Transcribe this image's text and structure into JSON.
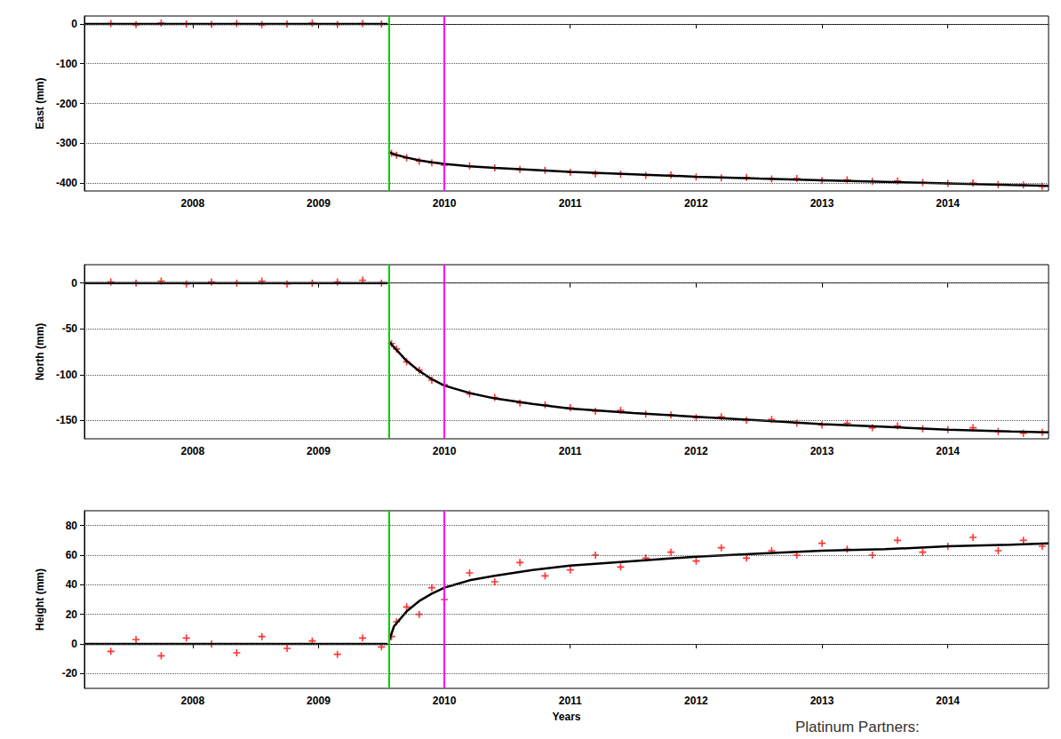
{
  "chart_data": [
    {
      "type": "line",
      "ylabel": "East (mm)",
      "grid": true,
      "xlim": [
        2007.14,
        2014.8
      ],
      "xticks": [
        2008,
        2009,
        2010,
        2011,
        2012,
        2013,
        2014
      ],
      "ylim": [
        -420,
        20
      ],
      "yticks": [
        -400,
        -300,
        -200,
        -100,
        0
      ],
      "vlines": [
        {
          "x": 2009.56,
          "color": "#00cc00"
        },
        {
          "x": 2010.0,
          "color": "#ff00ff"
        }
      ],
      "series": [
        {
          "type": "scatter",
          "color": "#ff0000",
          "marker": "plus",
          "x": [
            2007.35,
            2007.55,
            2007.75,
            2007.95,
            2008.15,
            2008.35,
            2008.55,
            2008.75,
            2008.95,
            2009.15,
            2009.35,
            2009.5,
            2009.58,
            2009.62,
            2009.7,
            2009.8,
            2009.9,
            2010.0,
            2010.2,
            2010.4,
            2010.6,
            2010.8,
            2011.0,
            2011.2,
            2011.4,
            2011.6,
            2011.8,
            2012.0,
            2012.2,
            2012.4,
            2012.6,
            2012.8,
            2013.0,
            2013.2,
            2013.4,
            2013.6,
            2013.8,
            2014.0,
            2014.2,
            2014.4,
            2014.6,
            2014.75
          ],
          "values": [
            1,
            -2,
            2,
            0,
            -1,
            1,
            -2,
            0,
            2,
            -1,
            1,
            0,
            -325,
            -330,
            -337,
            -345,
            -349,
            -355,
            -357,
            -362,
            -366,
            -368,
            -373,
            -377,
            -378,
            -381,
            -380,
            -385,
            -387,
            -386,
            -390,
            -389,
            -394,
            -392,
            -396,
            -395,
            -399,
            -401,
            -400,
            -404,
            -405,
            -408
          ]
        },
        {
          "type": "line",
          "color": "#000000",
          "line_style": "solid",
          "x": [
            2007.14,
            2009.55,
            2009.555,
            2009.56,
            2009.6,
            2009.7,
            2009.8,
            2009.9,
            2010.0,
            2010.2,
            2010.4,
            2010.7,
            2011.0,
            2011.5,
            2012.0,
            2012.5,
            2013.0,
            2013.5,
            2014.0,
            2014.5,
            2014.8
          ],
          "values": [
            0,
            0,
            null,
            -322,
            -328,
            -336,
            -343,
            -348,
            -352,
            -358,
            -362,
            -367,
            -372,
            -378,
            -384,
            -389,
            -393,
            -397,
            -401,
            -405,
            -407
          ]
        }
      ]
    },
    {
      "type": "line",
      "ylabel": "North (mm)",
      "grid": true,
      "xlim": [
        2007.14,
        2014.8
      ],
      "xticks": [
        2008,
        2009,
        2010,
        2011,
        2012,
        2013,
        2014
      ],
      "ylim": [
        -170,
        20
      ],
      "yticks": [
        -150,
        -100,
        -50,
        0
      ],
      "vlines": [
        {
          "x": 2009.56,
          "color": "#00cc00"
        },
        {
          "x": 2010.0,
          "color": "#ff00ff"
        }
      ],
      "series": [
        {
          "type": "scatter",
          "color": "#ff0000",
          "marker": "plus",
          "x": [
            2007.35,
            2007.55,
            2007.75,
            2007.95,
            2008.15,
            2008.35,
            2008.55,
            2008.75,
            2008.95,
            2009.15,
            2009.35,
            2009.5,
            2009.58,
            2009.62,
            2009.7,
            2009.8,
            2009.9,
            2010.0,
            2010.2,
            2010.4,
            2010.6,
            2010.8,
            2011.0,
            2011.2,
            2011.4,
            2011.6,
            2011.8,
            2012.0,
            2012.2,
            2012.4,
            2012.6,
            2012.8,
            2013.0,
            2013.2,
            2013.4,
            2013.6,
            2013.8,
            2014.0,
            2014.2,
            2014.4,
            2014.6,
            2014.75
          ],
          "values": [
            1,
            0,
            2,
            -1,
            1,
            0,
            2,
            -1,
            0,
            1,
            3,
            0,
            -66,
            -72,
            -86,
            -95,
            -106,
            -111,
            -121,
            -125,
            -131,
            -133,
            -136,
            -140,
            -139,
            -143,
            -144,
            -147,
            -146,
            -150,
            -149,
            -153,
            -155,
            -153,
            -158,
            -156,
            -159,
            -160,
            -158,
            -162,
            -164,
            -163
          ]
        },
        {
          "type": "line",
          "color": "#000000",
          "line_style": "solid",
          "x": [
            2007.14,
            2009.55,
            2009.555,
            2009.56,
            2009.6,
            2009.7,
            2009.8,
            2009.9,
            2010.0,
            2010.2,
            2010.4,
            2010.7,
            2011.0,
            2011.5,
            2012.0,
            2012.5,
            2013.0,
            2013.5,
            2014.0,
            2014.5,
            2014.8
          ],
          "values": [
            0,
            0,
            null,
            -64,
            -70,
            -85,
            -96,
            -105,
            -112,
            -120,
            -126,
            -132,
            -137,
            -142,
            -146,
            -150,
            -154,
            -157,
            -160,
            -162,
            -163
          ]
        }
      ]
    },
    {
      "type": "line",
      "ylabel": "Height (mm)",
      "xlabel": "Years",
      "grid": true,
      "xlim": [
        2007.14,
        2014.8
      ],
      "xticks": [
        2008,
        2009,
        2010,
        2011,
        2012,
        2013,
        2014
      ],
      "ylim": [
        -30,
        90
      ],
      "yticks": [
        -20,
        0,
        20,
        40,
        60,
        80
      ],
      "vlines": [
        {
          "x": 2009.56,
          "color": "#00cc00"
        },
        {
          "x": 2010.0,
          "color": "#ff00ff"
        }
      ],
      "series": [
        {
          "type": "scatter",
          "color": "#ff0000",
          "marker": "plus",
          "x": [
            2007.35,
            2007.55,
            2007.75,
            2007.95,
            2008.15,
            2008.35,
            2008.55,
            2008.75,
            2008.95,
            2009.15,
            2009.35,
            2009.5,
            2009.58,
            2009.62,
            2009.7,
            2009.8,
            2009.9,
            2010.0,
            2010.2,
            2010.4,
            2010.6,
            2010.8,
            2011.0,
            2011.2,
            2011.4,
            2011.6,
            2011.8,
            2012.0,
            2012.2,
            2012.4,
            2012.6,
            2012.8,
            2013.0,
            2013.2,
            2013.4,
            2013.6,
            2013.8,
            2014.0,
            2014.2,
            2014.4,
            2014.6,
            2014.75
          ],
          "values": [
            -5,
            3,
            -8,
            4,
            0,
            -6,
            5,
            -3,
            2,
            -7,
            4,
            -2,
            5,
            15,
            25,
            20,
            38,
            30,
            48,
            42,
            55,
            46,
            50,
            60,
            52,
            58,
            62,
            56,
            65,
            58,
            63,
            60,
            68,
            64,
            60,
            70,
            62,
            66,
            72,
            63,
            70,
            66
          ]
        },
        {
          "type": "line",
          "color": "#000000",
          "line_style": "solid",
          "x": [
            2007.14,
            2009.55,
            2009.555,
            2009.56,
            2009.6,
            2009.7,
            2009.8,
            2009.9,
            2010.0,
            2010.2,
            2010.4,
            2010.7,
            2011.0,
            2011.5,
            2012.0,
            2012.5,
            2013.0,
            2013.5,
            2014.0,
            2014.5,
            2014.8
          ],
          "values": [
            0,
            0,
            null,
            2,
            12,
            22,
            29,
            34,
            38,
            43,
            46,
            50,
            53,
            56,
            59,
            61,
            63,
            64,
            66,
            67,
            68
          ]
        }
      ]
    }
  ],
  "footer": "Platinum Partners:"
}
